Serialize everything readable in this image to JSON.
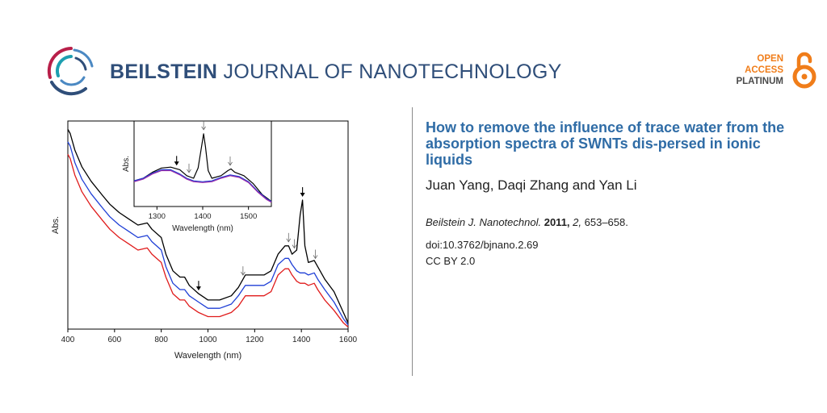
{
  "header": {
    "journal_name_bold": "BEILSTEIN",
    "journal_name_rest": " JOURNAL OF NANOTECHNOLOGY",
    "brand_color": "#2f4e79",
    "oa_badge": {
      "line1": "OPEN",
      "line2": "ACCESS",
      "line3": "PLATINUM",
      "accent": "#f07d1a"
    }
  },
  "article": {
    "title": "How to remove the influence of trace water from the absorption spectra of SWNTs dis-persed in ionic liquids",
    "authors": "Juan Yang, Daqi Zhang and Yan Li",
    "journal_abbrev": "Beilstein J. Nanotechnol.",
    "year": "2011,",
    "volume": "2,",
    "pages": "653–658.",
    "doi": "doi:10.3762/bjnano.2.69",
    "license": "CC BY 2.0"
  },
  "chart_data": [
    {
      "type": "line",
      "xlabel": "Wavelength (nm)",
      "ylabel": "Abs.",
      "xlim": [
        400,
        1600
      ],
      "xticks": [
        400,
        600,
        800,
        1000,
        1200,
        1400,
        1600
      ],
      "ylim": [
        0,
        1
      ],
      "y_tick_labels_shown": false,
      "series": [
        {
          "color": "#000000",
          "x": [
            400,
            410,
            430,
            460,
            500,
            550,
            580,
            620,
            660,
            700,
            740,
            760,
            800,
            820,
            850,
            880,
            900,
            920,
            960,
            1000,
            1050,
            1100,
            1130,
            1160,
            1200,
            1240,
            1270,
            1300,
            1330,
            1345,
            1360,
            1380,
            1395,
            1405,
            1415,
            1430,
            1455,
            1470,
            1500,
            1540,
            1580,
            1600
          ],
          "y": [
            0.96,
            0.94,
            0.86,
            0.78,
            0.71,
            0.64,
            0.6,
            0.56,
            0.53,
            0.5,
            0.51,
            0.48,
            0.44,
            0.36,
            0.28,
            0.25,
            0.25,
            0.21,
            0.17,
            0.14,
            0.14,
            0.16,
            0.2,
            0.26,
            0.26,
            0.26,
            0.28,
            0.36,
            0.4,
            0.4,
            0.36,
            0.38,
            0.55,
            0.62,
            0.4,
            0.32,
            0.33,
            0.3,
            0.24,
            0.18,
            0.08,
            0.03
          ]
        },
        {
          "color": "#1f3fd6",
          "x": [
            400,
            410,
            430,
            460,
            500,
            550,
            580,
            620,
            660,
            700,
            740,
            760,
            800,
            820,
            850,
            880,
            900,
            920,
            960,
            1000,
            1050,
            1100,
            1130,
            1160,
            1200,
            1240,
            1270,
            1300,
            1330,
            1345,
            1360,
            1380,
            1395,
            1405,
            1415,
            1430,
            1455,
            1470,
            1500,
            1540,
            1580,
            1600
          ],
          "y": [
            0.9,
            0.88,
            0.8,
            0.72,
            0.65,
            0.58,
            0.54,
            0.5,
            0.47,
            0.44,
            0.45,
            0.42,
            0.38,
            0.3,
            0.22,
            0.19,
            0.19,
            0.16,
            0.13,
            0.1,
            0.1,
            0.12,
            0.16,
            0.21,
            0.21,
            0.21,
            0.23,
            0.31,
            0.34,
            0.34,
            0.31,
            0.28,
            0.27,
            0.27,
            0.27,
            0.26,
            0.27,
            0.24,
            0.19,
            0.13,
            0.05,
            0.02
          ]
        },
        {
          "color": "#e01b1b",
          "x": [
            400,
            410,
            430,
            460,
            500,
            550,
            580,
            620,
            660,
            700,
            740,
            760,
            800,
            820,
            850,
            880,
            900,
            920,
            960,
            1000,
            1050,
            1100,
            1130,
            1160,
            1200,
            1240,
            1270,
            1300,
            1330,
            1345,
            1360,
            1380,
            1395,
            1405,
            1415,
            1430,
            1455,
            1470,
            1500,
            1540,
            1580,
            1600
          ],
          "y": [
            0.84,
            0.82,
            0.74,
            0.66,
            0.59,
            0.52,
            0.48,
            0.44,
            0.41,
            0.38,
            0.39,
            0.36,
            0.32,
            0.25,
            0.17,
            0.14,
            0.14,
            0.11,
            0.08,
            0.06,
            0.06,
            0.08,
            0.11,
            0.16,
            0.16,
            0.16,
            0.18,
            0.26,
            0.29,
            0.29,
            0.26,
            0.23,
            0.22,
            0.22,
            0.22,
            0.21,
            0.22,
            0.19,
            0.14,
            0.09,
            0.03,
            0.01
          ]
        }
      ],
      "arrows": [
        {
          "x": 960,
          "style": "solid"
        },
        {
          "x": 1150,
          "style": "open"
        },
        {
          "x": 1345,
          "style": "open"
        },
        {
          "x": 1370,
          "style": "open"
        },
        {
          "x": 1405,
          "style": "solid"
        },
        {
          "x": 1460,
          "style": "open"
        }
      ]
    },
    {
      "type": "line",
      "xlabel": "Wavelength (nm)",
      "ylabel": "Abs.",
      "xlim": [
        1250,
        1550
      ],
      "xticks": [
        1300,
        1400,
        1500
      ],
      "ylim": [
        0,
        1
      ],
      "y_tick_labels_shown": false,
      "series": [
        {
          "color": "#000000",
          "x": [
            1250,
            1270,
            1290,
            1310,
            1330,
            1350,
            1365,
            1380,
            1390,
            1398,
            1402,
            1406,
            1412,
            1420,
            1440,
            1455,
            1462,
            1470,
            1490,
            1510,
            1530,
            1550
          ],
          "y": [
            0.3,
            0.33,
            0.4,
            0.45,
            0.46,
            0.43,
            0.36,
            0.33,
            0.45,
            0.72,
            0.85,
            0.7,
            0.42,
            0.33,
            0.36,
            0.42,
            0.44,
            0.4,
            0.36,
            0.27,
            0.14,
            0.06
          ]
        },
        {
          "color": "#1f3fd6",
          "x": [
            1250,
            1270,
            1290,
            1310,
            1330,
            1350,
            1365,
            1380,
            1400,
            1420,
            1440,
            1460,
            1480,
            1500,
            1520,
            1540,
            1550
          ],
          "y": [
            0.3,
            0.33,
            0.39,
            0.43,
            0.43,
            0.38,
            0.33,
            0.3,
            0.29,
            0.3,
            0.34,
            0.37,
            0.35,
            0.29,
            0.18,
            0.09,
            0.06
          ]
        },
        {
          "color": "#9b2aa8",
          "x": [
            1250,
            1270,
            1290,
            1310,
            1330,
            1350,
            1365,
            1380,
            1400,
            1420,
            1440,
            1460,
            1480,
            1500,
            1520,
            1540,
            1550
          ],
          "y": [
            0.29,
            0.32,
            0.38,
            0.42,
            0.42,
            0.37,
            0.32,
            0.29,
            0.28,
            0.29,
            0.33,
            0.36,
            0.34,
            0.28,
            0.17,
            0.08,
            0.05
          ]
        }
      ],
      "arrows": [
        {
          "x": 1343,
          "style": "solid"
        },
        {
          "x": 1370,
          "style": "open"
        },
        {
          "x": 1402,
          "style": "open"
        },
        {
          "x": 1460,
          "style": "open"
        }
      ]
    }
  ]
}
